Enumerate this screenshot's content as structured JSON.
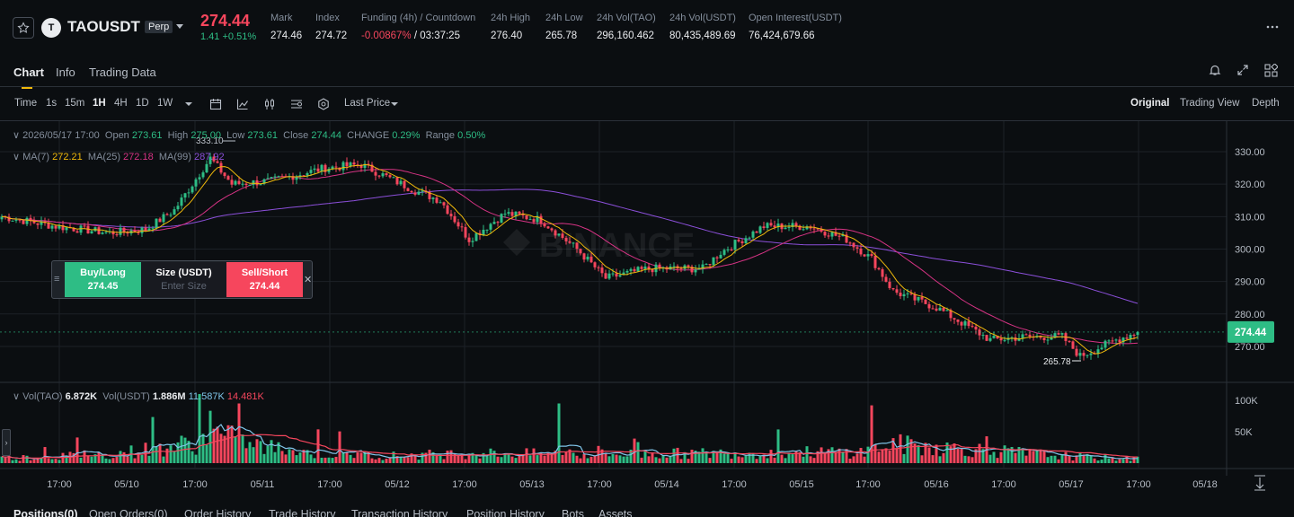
{
  "header": {
    "symbol": "TAOUSDT",
    "symbol_badge": "Perp",
    "coin_initial": "T",
    "last_price": "274.44",
    "change": "1.41",
    "change_pct": "+0.51%",
    "stats": [
      {
        "label": "Mark",
        "value": "274.46",
        "value_color": "#eaecef"
      },
      {
        "label": "Index",
        "value": "274.72",
        "value_color": "#eaecef"
      },
      {
        "label": "Funding (4h) / Countdown",
        "value": "-0.00867%",
        "value2": " / 03:37:25",
        "value_color": "#f6465d"
      },
      {
        "label": "24h High",
        "value": "276.40",
        "value_color": "#eaecef"
      },
      {
        "label": "24h Low",
        "value": "265.78",
        "value_color": "#eaecef"
      },
      {
        "label": "24h Vol(TAO)",
        "value": "296,160.462",
        "value_color": "#eaecef"
      },
      {
        "label": "24h Vol(USDT)",
        "value": "80,435,489.69",
        "value_color": "#eaecef"
      },
      {
        "label": "Open Interest(USDT)",
        "value": "76,424,679.66",
        "value_color": "#eaecef"
      }
    ]
  },
  "tabs": [
    "Chart",
    "Info",
    "Trading Data"
  ],
  "toolbar": {
    "intervals": [
      "Time",
      "1s",
      "15m",
      "1H",
      "4H",
      "1D",
      "1W"
    ],
    "active_interval": "1H",
    "price_type": "Last Price",
    "views": [
      "Original",
      "Trading View",
      "Depth"
    ],
    "active_view": "Original"
  },
  "ohlc": {
    "date": "2026/05/17 17:00",
    "open_label": "Open",
    "open": "273.61",
    "high_label": "High",
    "high": "275.00",
    "low_label": "Low",
    "low": "273.61",
    "close_label": "Close",
    "close": "274.44",
    "change_label": "CHANGE",
    "change": "0.29%",
    "range_label": "Range",
    "range": "0.50%"
  },
  "ma": {
    "ma7_label": "MA(7)",
    "ma7": "272.21",
    "ma25_label": "MA(25)",
    "ma25": "272.18",
    "ma99_label": "MA(99)",
    "ma99": "287.92"
  },
  "volume": {
    "tao_label": "Vol(TAO)",
    "tao": "6.872K",
    "usdt_label": "Vol(USDT)",
    "usdt": "1.886M",
    "ma1": "11.587K",
    "ma2": "14.481K",
    "axis": [
      "100K",
      "50K"
    ]
  },
  "price_axis": [
    "330.00",
    "320.00",
    "310.00",
    "300.00",
    "290.00",
    "280.00",
    "270.00"
  ],
  "current_price_tag": "274.44",
  "markers": {
    "high": "333.10",
    "low": "265.78"
  },
  "time_axis": [
    "17:00",
    "05/10",
    "17:00",
    "05/11",
    "17:00",
    "05/12",
    "17:00",
    "05/13",
    "17:00",
    "05/14",
    "17:00",
    "05/15",
    "17:00",
    "05/16",
    "17:00",
    "05/17",
    "17:00",
    "05/18"
  ],
  "trade_widget": {
    "buy_label": "Buy/Long",
    "buy_price": "274.45",
    "size_label": "Size (USDT)",
    "size_placeholder": "Enter Size",
    "sell_label": "Sell/Short",
    "sell_price": "274.44"
  },
  "watermark": "BINANCE",
  "bottom_tabs": [
    "Positions(0)",
    "Open Orders(0)",
    "Order History",
    "Trade History",
    "Transaction History",
    "Position History",
    "Bots",
    "Assets"
  ],
  "colors": {
    "up": "#2ebd85",
    "down": "#f6465d",
    "ma7": "#f0b90b",
    "ma25": "#d63384",
    "ma99": "#8b4fd9",
    "accent": "#f0b90b"
  },
  "chart_data": {
    "type": "candlestick",
    "interval": "1H",
    "price_range": [
      265,
      333
    ],
    "anchors": [
      [
        0,
        310
      ],
      [
        15,
        307
      ],
      [
        30,
        305
      ],
      [
        40,
        306
      ],
      [
        48,
        312
      ],
      [
        58,
        328
      ],
      [
        64,
        320
      ],
      [
        75,
        321
      ],
      [
        90,
        325
      ],
      [
        100,
        326
      ],
      [
        115,
        318
      ],
      [
        122,
        315
      ],
      [
        130,
        303
      ],
      [
        140,
        311
      ],
      [
        150,
        309
      ],
      [
        160,
        300
      ],
      [
        168,
        291
      ],
      [
        180,
        294
      ],
      [
        195,
        294
      ],
      [
        200,
        299
      ],
      [
        212,
        307
      ],
      [
        225,
        307
      ],
      [
        235,
        303
      ],
      [
        242,
        297
      ],
      [
        248,
        287
      ],
      [
        260,
        282
      ],
      [
        275,
        272
      ],
      [
        285,
        273
      ],
      [
        295,
        273
      ],
      [
        300,
        267
      ],
      [
        310,
        272
      ],
      [
        316,
        274.44
      ]
    ],
    "volume_anchors": [
      [
        0,
        8
      ],
      [
        30,
        14
      ],
      [
        54,
        32
      ],
      [
        58,
        48
      ],
      [
        70,
        28
      ],
      [
        90,
        14
      ],
      [
        110,
        12
      ],
      [
        130,
        16
      ],
      [
        160,
        14
      ],
      [
        200,
        16
      ],
      [
        240,
        18
      ],
      [
        248,
        30
      ],
      [
        270,
        22
      ],
      [
        300,
        10
      ],
      [
        316,
        7
      ]
    ]
  }
}
